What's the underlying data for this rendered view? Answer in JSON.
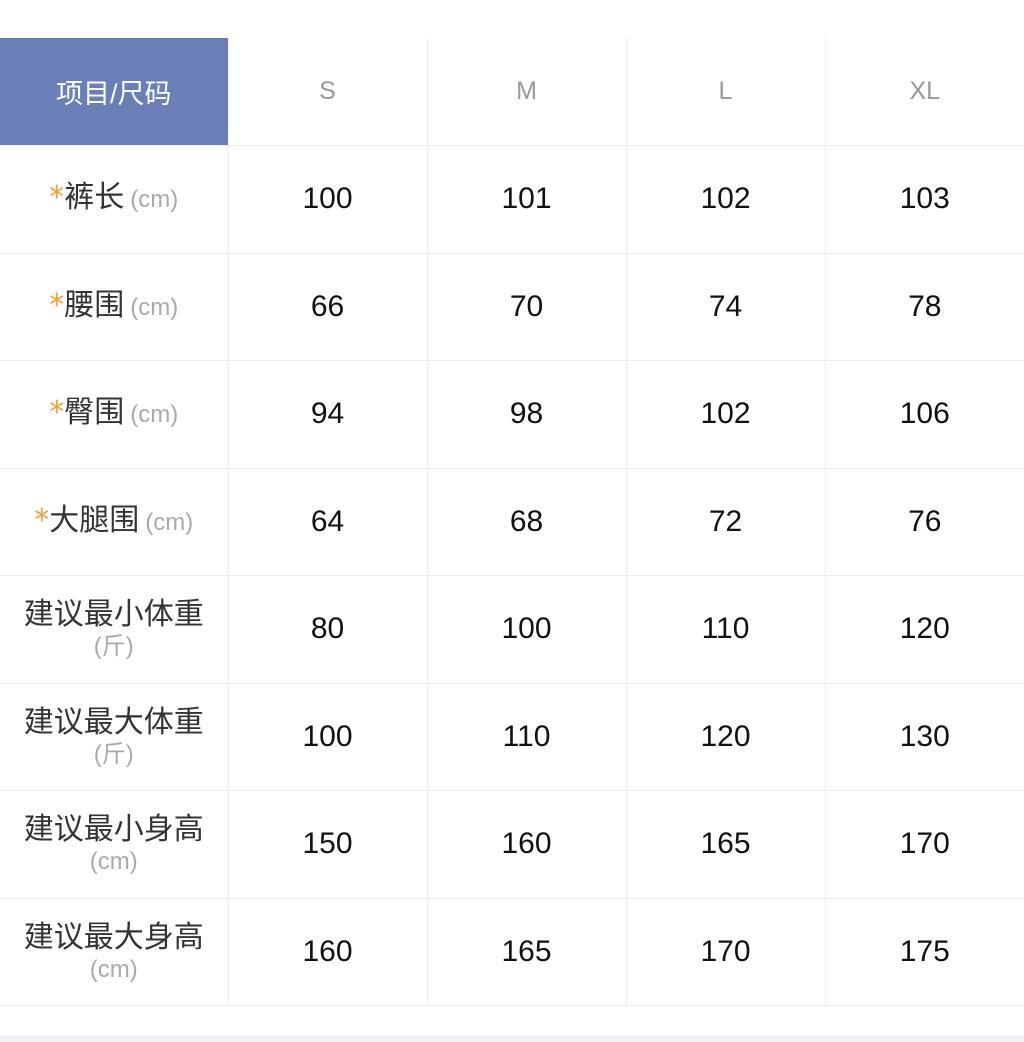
{
  "header": {
    "corner": "项目/尺码",
    "sizes": [
      "S",
      "M",
      "L",
      "XL"
    ]
  },
  "colors": {
    "header_bg": "#6a7fb7",
    "required_star": "#f0a030"
  },
  "rows": [
    {
      "required": "*",
      "label": "裤长",
      "unit": "(cm)",
      "values": [
        "100",
        "101",
        "102",
        "103"
      ]
    },
    {
      "required": "*",
      "label": "腰围",
      "unit": "(cm)",
      "values": [
        "66",
        "70",
        "74",
        "78"
      ]
    },
    {
      "required": "*",
      "label": "臀围",
      "unit": "(cm)",
      "values": [
        "94",
        "98",
        "102",
        "106"
      ]
    },
    {
      "required": "*",
      "label": "大腿围",
      "unit": "(cm)",
      "values": [
        "64",
        "68",
        "72",
        "76"
      ]
    },
    {
      "label": "建议最小体重",
      "unit": "(斤)",
      "values": [
        "80",
        "100",
        "110",
        "120"
      ]
    },
    {
      "label": "建议最大体重",
      "unit": "(斤)",
      "values": [
        "100",
        "110",
        "120",
        "130"
      ]
    },
    {
      "label": "建议最小身高",
      "unit": "(cm)",
      "values": [
        "150",
        "160",
        "165",
        "170"
      ]
    },
    {
      "label": "建议最大身高",
      "unit": "(cm)",
      "values": [
        "160",
        "165",
        "170",
        "175"
      ]
    }
  ]
}
